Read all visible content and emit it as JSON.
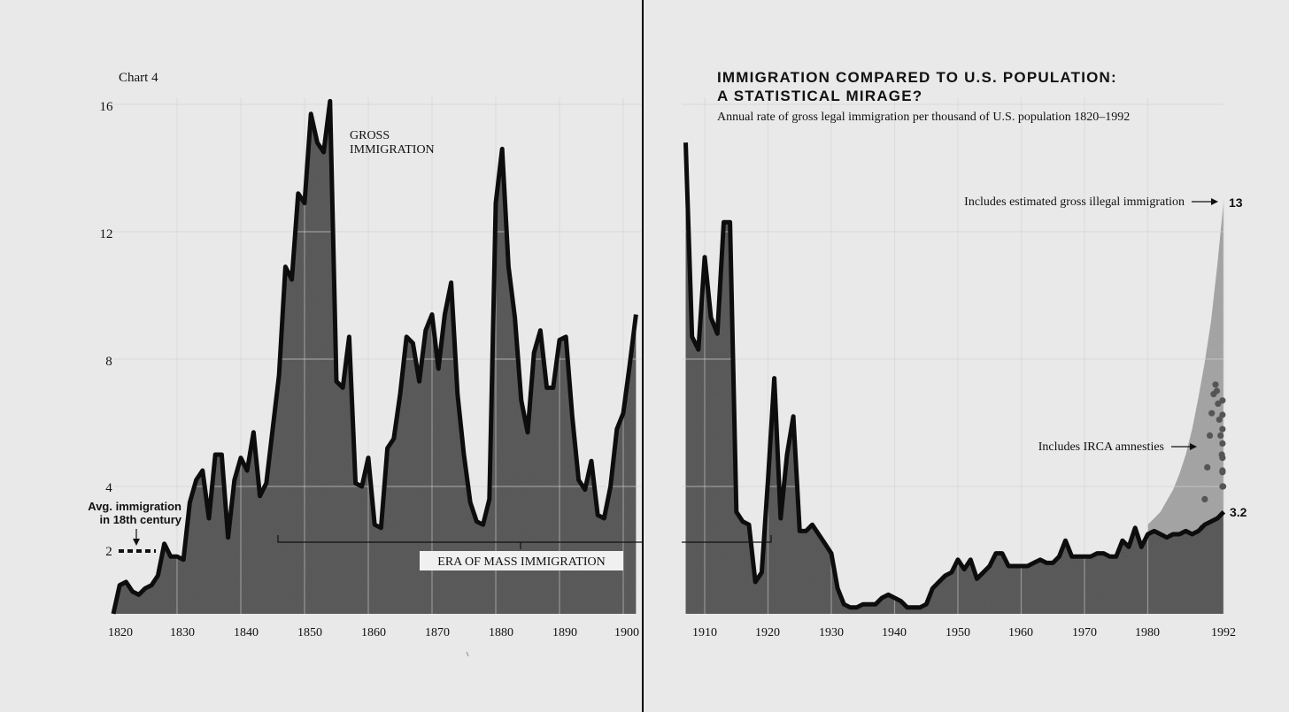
{
  "chart_data": {
    "type": "area",
    "chart_label": "Chart 4",
    "title_line1": "IMMIGRATION COMPARED TO U.S. POPULATION:",
    "title_line2": "A STATISTICAL MIRAGE?",
    "subtitle": "Annual rate of gross legal immigration per thousand of U.S. population 1820–1992",
    "ylim": [
      0,
      16
    ],
    "y_ticks": [
      "16",
      "12",
      "8",
      "4",
      "2"
    ],
    "x_ticks_left": [
      "1820",
      "1830",
      "1840",
      "1850",
      "1860",
      "1870",
      "1880",
      "1890",
      "1900"
    ],
    "x_ticks_right": [
      "1910",
      "1920",
      "1930",
      "1940",
      "1950",
      "1960",
      "1970",
      "1980",
      "1992"
    ],
    "grid": true,
    "annotations": {
      "gross_line1": "GROSS",
      "gross_line2": "IMMIGRATION",
      "era": "ERA OF MASS IMMIGRATION",
      "avg_line1": "Avg. immigration",
      "avg_line2": "in 18th century",
      "illegal": "Includes estimated gross illegal immigration",
      "irca": "Includes IRCA amnesties",
      "end_illegal": "13",
      "end_legal": "3.2"
    },
    "avg_18th_century": 2.0,
    "era_of_mass_immigration": [
      1845,
      1921
    ],
    "colors": {
      "background": "#e9e9e9",
      "area": "#5c5c5c",
      "line": "#0d0d0d",
      "illegal_area": "#a8a8a8",
      "irca_dots": "#555555",
      "grid": "#d2d2d2"
    },
    "series_left": {
      "x": [
        1820,
        1821,
        1822,
        1823,
        1824,
        1825,
        1826,
        1827,
        1828,
        1829,
        1830,
        1831,
        1832,
        1833,
        1834,
        1835,
        1836,
        1837,
        1838,
        1839,
        1840,
        1841,
        1842,
        1843,
        1844,
        1845,
        1846,
        1847,
        1848,
        1849,
        1850,
        1851,
        1852,
        1853,
        1854,
        1855,
        1856,
        1857,
        1858,
        1859,
        1860,
        1861,
        1862,
        1863,
        1864,
        1865,
        1866,
        1867,
        1868,
        1869,
        1870,
        1871,
        1872,
        1873,
        1874,
        1875,
        1876,
        1877,
        1878,
        1879,
        1880,
        1881,
        1882,
        1883,
        1884,
        1885,
        1886,
        1887,
        1888,
        1889,
        1890,
        1891,
        1892,
        1893,
        1894,
        1895,
        1896,
        1897,
        1898,
        1899,
        1900,
        1901,
        1902
      ],
      "values": [
        0.0,
        0.9,
        1.0,
        0.7,
        0.6,
        0.8,
        0.9,
        1.2,
        2.2,
        1.8,
        1.8,
        1.7,
        3.5,
        4.2,
        4.5,
        3.0,
        5.0,
        5.0,
        2.4,
        4.2,
        4.9,
        4.5,
        5.7,
        3.7,
        4.1,
        5.8,
        7.5,
        10.9,
        10.5,
        13.2,
        12.9,
        15.7,
        14.8,
        14.5,
        16.1,
        7.3,
        7.1,
        8.7,
        4.1,
        4.0,
        4.9,
        2.8,
        2.7,
        5.2,
        5.5,
        6.9,
        8.7,
        8.5,
        7.3,
        8.9,
        9.4,
        7.7,
        9.4,
        10.4,
        6.9,
        5.0,
        3.5,
        2.9,
        2.8,
        3.6,
        12.9,
        14.6,
        10.9,
        9.3,
        6.7,
        5.7,
        8.2,
        8.9,
        7.1,
        7.1,
        8.6,
        8.7,
        6.2,
        4.2,
        3.9,
        4.8,
        3.1,
        3.0,
        4.0,
        5.8,
        6.3,
        7.8,
        9.4
      ]
    },
    "series_right": {
      "x": [
        1907,
        1908,
        1909,
        1910,
        1911,
        1912,
        1913,
        1914,
        1915,
        1916,
        1917,
        1918,
        1919,
        1920,
        1921,
        1922,
        1923,
        1924,
        1925,
        1926,
        1927,
        1928,
        1929,
        1930,
        1931,
        1932,
        1933,
        1934,
        1935,
        1936,
        1937,
        1938,
        1939,
        1940,
        1941,
        1942,
        1943,
        1944,
        1945,
        1946,
        1947,
        1948,
        1949,
        1950,
        1951,
        1952,
        1953,
        1954,
        1955,
        1956,
        1957,
        1958,
        1959,
        1960,
        1961,
        1962,
        1963,
        1964,
        1965,
        1966,
        1967,
        1968,
        1969,
        1970,
        1971,
        1972,
        1973,
        1974,
        1975,
        1976,
        1977,
        1978,
        1979,
        1980,
        1981,
        1982,
        1983,
        1984,
        1985,
        1986,
        1987,
        1988,
        1989,
        1990,
        1991,
        1992
      ],
      "values": [
        14.8,
        8.7,
        8.3,
        11.2,
        9.3,
        8.8,
        12.3,
        12.3,
        3.2,
        2.9,
        2.8,
        1.0,
        1.3,
        4.2,
        7.4,
        3.0,
        5.0,
        6.2,
        2.6,
        2.6,
        2.8,
        2.5,
        2.2,
        1.9,
        0.8,
        0.3,
        0.2,
        0.2,
        0.3,
        0.3,
        0.3,
        0.5,
        0.6,
        0.5,
        0.4,
        0.2,
        0.2,
        0.2,
        0.3,
        0.8,
        1.0,
        1.2,
        1.3,
        1.7,
        1.4,
        1.7,
        1.1,
        1.3,
        1.5,
        1.9,
        1.9,
        1.5,
        1.5,
        1.5,
        1.5,
        1.6,
        1.7,
        1.6,
        1.6,
        1.8,
        2.3,
        1.8,
        1.8,
        1.8,
        1.8,
        1.9,
        1.9,
        1.8,
        1.8,
        2.3,
        2.1,
        2.7,
        2.1,
        2.5,
        2.6,
        2.5,
        2.4,
        2.5,
        2.5,
        2.6,
        2.5,
        2.6,
        2.8,
        2.9,
        3.0,
        3.2
      ]
    },
    "series_illegal": {
      "x": [
        1980,
        1982,
        1984,
        1985,
        1986,
        1987,
        1988,
        1989,
        1990,
        1991,
        1992
      ],
      "values": [
        2.8,
        3.2,
        3.9,
        4.4,
        5.0,
        5.8,
        6.8,
        7.9,
        9.2,
        11.0,
        13.0
      ]
    },
    "series_irca": {
      "x": [
        1988.6,
        1989.0,
        1989.4,
        1989.8,
        1990.1,
        1990.4,
        1990.7,
        1990.9,
        1991.1,
        1991.3,
        1991.5,
        1991.7,
        1991.8,
        1991.9
      ],
      "values": [
        2.7,
        3.6,
        4.6,
        5.6,
        6.3,
        6.9,
        7.2,
        7.0,
        6.6,
        6.1,
        5.6,
        5.0,
        4.5,
        4.0
      ]
    }
  }
}
